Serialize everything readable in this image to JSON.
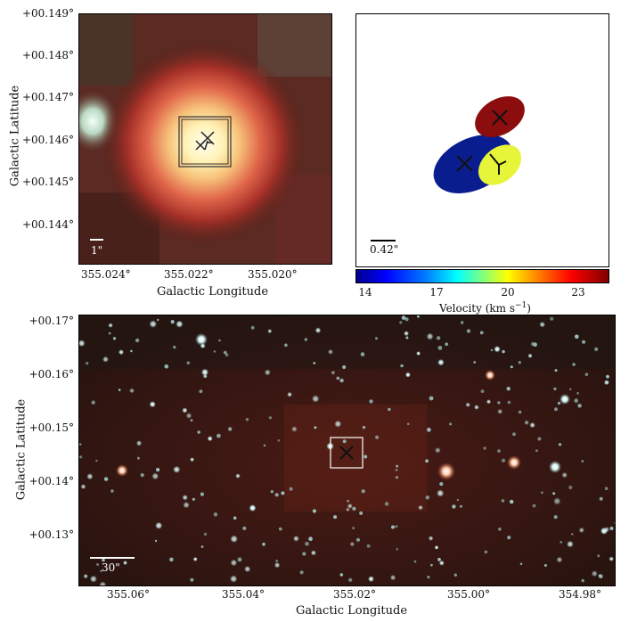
{
  "top_left": {
    "y_ticks": [
      "+00.149°",
      "+00.148°",
      "+00.147°",
      "+00.146°",
      "+00.145°",
      "+00.144°"
    ],
    "x_ticks": [
      "355.024°",
      "355.022°",
      "355.020°"
    ],
    "xlabel": "Galactic Longitude",
    "ylabel": "Galactic Latitude",
    "scale_label": "1\""
  },
  "top_right": {
    "scale_label": "0.42\"",
    "colorbar_ticks": [
      "14",
      "17",
      "20",
      "23"
    ],
    "colorbar_label": "Velocity (km s",
    "colorbar_label_sup": "−1",
    "colorbar_label_end": ")",
    "ellipse_colors": {
      "red": "#8b0d0d",
      "blue": "#0a1d8f",
      "yellow": "#e6f53a"
    }
  },
  "bottom": {
    "y_ticks": [
      "+00.17°",
      "+00.16°",
      "+00.15°",
      "+00.14°",
      "+00.13°"
    ],
    "x_ticks": [
      "355.06°",
      "355.04°",
      "355.02°",
      "355.00°",
      "354.98°"
    ],
    "xlabel": "Galactic Longitude",
    "ylabel": "Galactic Latitude",
    "scale_label": "30\""
  }
}
